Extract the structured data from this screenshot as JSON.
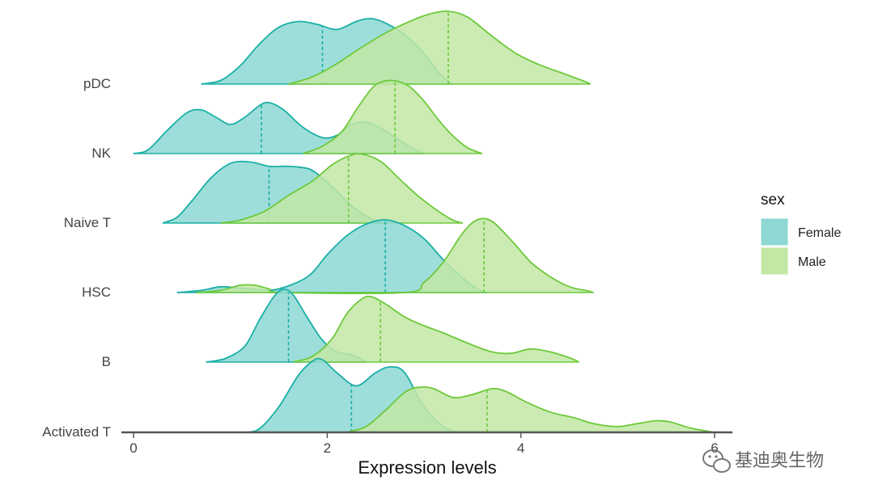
{
  "chart_data": {
    "type": "ridgeline",
    "title": "",
    "xlabel": "Expression levels",
    "ylabel": "",
    "xlim": [
      -0.1,
      6.05
    ],
    "x_ticks": [
      "0",
      "2",
      "4",
      "6"
    ],
    "x_tick_values": [
      0,
      2,
      4,
      6
    ],
    "categories": [
      "Activated T",
      "B",
      "HSC",
      "Naive T",
      "NK",
      "pDC"
    ],
    "legend": {
      "title": "sex",
      "placement": "right",
      "entries": [
        "Female",
        "Male"
      ]
    },
    "series": [
      {
        "name": "Female",
        "color": "#1aafa6",
        "fill": "#8dd8d3",
        "ridges": [
          {
            "category": "Activated T",
            "median": 2.25,
            "points": [
              [
                1.15,
                0
              ],
              [
                1.3,
                0.05
              ],
              [
                1.5,
                0.35
              ],
              [
                1.7,
                0.78
              ],
              [
                1.85,
                0.98
              ],
              [
                1.95,
                1.0
              ],
              [
                2.1,
                0.82
              ],
              [
                2.3,
                0.64
              ],
              [
                2.5,
                0.82
              ],
              [
                2.65,
                0.9
              ],
              [
                2.8,
                0.82
              ],
              [
                3.0,
                0.35
              ],
              [
                3.2,
                0.08
              ],
              [
                3.35,
                0
              ]
            ]
          },
          {
            "category": "B",
            "median": 1.6,
            "points": [
              [
                0.75,
                0
              ],
              [
                0.95,
                0.05
              ],
              [
                1.15,
                0.22
              ],
              [
                1.3,
                0.58
              ],
              [
                1.45,
                0.9
              ],
              [
                1.55,
                1.0
              ],
              [
                1.65,
                0.92
              ],
              [
                1.8,
                0.6
              ],
              [
                1.95,
                0.3
              ],
              [
                2.1,
                0.14
              ],
              [
                2.25,
                0.1
              ],
              [
                2.35,
                0.04
              ],
              [
                2.4,
                0
              ]
            ]
          },
          {
            "category": "HSC",
            "median": 2.6,
            "points": [
              [
                0.45,
                0
              ],
              [
                0.7,
                0.03
              ],
              [
                0.9,
                0.08
              ],
              [
                1.1,
                0.06
              ],
              [
                1.3,
                0.04
              ],
              [
                1.5,
                0.05
              ],
              [
                1.8,
                0.22
              ],
              [
                2.0,
                0.52
              ],
              [
                2.2,
                0.78
              ],
              [
                2.4,
                0.94
              ],
              [
                2.6,
                1.0
              ],
              [
                2.8,
                0.92
              ],
              [
                3.0,
                0.74
              ],
              [
                3.2,
                0.45
              ],
              [
                3.4,
                0.2
              ],
              [
                3.55,
                0.05
              ],
              [
                3.65,
                0
              ]
            ]
          },
          {
            "category": "Naive T",
            "median": 1.4,
            "points": [
              [
                0.3,
                0
              ],
              [
                0.45,
                0.08
              ],
              [
                0.6,
                0.3
              ],
              [
                0.8,
                0.62
              ],
              [
                1.0,
                0.82
              ],
              [
                1.2,
                0.84
              ],
              [
                1.4,
                0.78
              ],
              [
                1.55,
                0.78
              ],
              [
                1.7,
                0.77
              ],
              [
                1.85,
                0.72
              ],
              [
                2.05,
                0.5
              ],
              [
                2.25,
                0.24
              ],
              [
                2.45,
                0.06
              ],
              [
                2.6,
                0
              ]
            ]
          },
          {
            "category": "NK",
            "median": 1.32,
            "points": [
              [
                0.0,
                0
              ],
              [
                0.15,
                0.05
              ],
              [
                0.35,
                0.32
              ],
              [
                0.55,
                0.56
              ],
              [
                0.7,
                0.6
              ],
              [
                0.85,
                0.5
              ],
              [
                1.0,
                0.4
              ],
              [
                1.15,
                0.5
              ],
              [
                1.3,
                0.66
              ],
              [
                1.4,
                0.7
              ],
              [
                1.55,
                0.6
              ],
              [
                1.75,
                0.36
              ],
              [
                1.95,
                0.22
              ],
              [
                2.1,
                0.25
              ],
              [
                2.25,
                0.4
              ],
              [
                2.4,
                0.43
              ],
              [
                2.55,
                0.35
              ],
              [
                2.75,
                0.18
              ],
              [
                2.9,
                0.06
              ],
              [
                3.0,
                0
              ]
            ]
          },
          {
            "category": "pDC",
            "median": 1.95,
            "points": [
              [
                0.7,
                0
              ],
              [
                0.9,
                0.05
              ],
              [
                1.1,
                0.25
              ],
              [
                1.3,
                0.55
              ],
              [
                1.5,
                0.78
              ],
              [
                1.7,
                0.86
              ],
              [
                1.9,
                0.82
              ],
              [
                2.1,
                0.75
              ],
              [
                2.3,
                0.86
              ],
              [
                2.45,
                0.9
              ],
              [
                2.6,
                0.84
              ],
              [
                2.8,
                0.68
              ],
              [
                3.0,
                0.42
              ],
              [
                3.15,
                0.16
              ],
              [
                3.25,
                0.04
              ],
              [
                3.3,
                0
              ]
            ]
          }
        ]
      },
      {
        "name": "Male",
        "color": "#6dc93a",
        "fill": "#c2e8a4",
        "ridges": [
          {
            "category": "Activated T",
            "median": 3.65,
            "points": [
              [
                2.2,
                0
              ],
              [
                2.4,
                0.08
              ],
              [
                2.6,
                0.3
              ],
              [
                2.8,
                0.55
              ],
              [
                2.95,
                0.62
              ],
              [
                3.1,
                0.6
              ],
              [
                3.3,
                0.48
              ],
              [
                3.5,
                0.52
              ],
              [
                3.7,
                0.6
              ],
              [
                3.85,
                0.56
              ],
              [
                4.05,
                0.42
              ],
              [
                4.3,
                0.28
              ],
              [
                4.55,
                0.2
              ],
              [
                4.75,
                0.12
              ],
              [
                5.0,
                0.08
              ],
              [
                5.2,
                0.12
              ],
              [
                5.4,
                0.16
              ],
              [
                5.55,
                0.14
              ],
              [
                5.75,
                0.06
              ],
              [
                6.0,
                0
              ]
            ]
          },
          {
            "category": "B",
            "median": 2.55,
            "points": [
              [
                1.65,
                0
              ],
              [
                1.85,
                0.08
              ],
              [
                2.05,
                0.32
              ],
              [
                2.2,
                0.66
              ],
              [
                2.35,
                0.86
              ],
              [
                2.45,
                0.9
              ],
              [
                2.6,
                0.8
              ],
              [
                2.8,
                0.62
              ],
              [
                3.0,
                0.5
              ],
              [
                3.2,
                0.4
              ],
              [
                3.45,
                0.26
              ],
              [
                3.7,
                0.14
              ],
              [
                3.9,
                0.12
              ],
              [
                4.1,
                0.18
              ],
              [
                4.3,
                0.14
              ],
              [
                4.5,
                0.06
              ],
              [
                4.6,
                0
              ]
            ]
          },
          {
            "category": "HSC",
            "median": 3.62,
            "points": [
              [
                0.65,
                0
              ],
              [
                0.9,
                0.03
              ],
              [
                1.1,
                0.1
              ],
              [
                1.25,
                0.1
              ],
              [
                1.4,
                0.05
              ],
              [
                1.55,
                0
              ],
              [
                2.8,
                0
              ],
              [
                3.0,
                0.14
              ],
              [
                3.2,
                0.42
              ],
              [
                3.4,
                0.82
              ],
              [
                3.55,
                1.0
              ],
              [
                3.7,
                0.98
              ],
              [
                3.9,
                0.72
              ],
              [
                4.1,
                0.42
              ],
              [
                4.3,
                0.22
              ],
              [
                4.5,
                0.08
              ],
              [
                4.7,
                0.02
              ],
              [
                4.75,
                0
              ]
            ]
          },
          {
            "category": "Naive T",
            "median": 2.22,
            "points": [
              [
                0.9,
                0
              ],
              [
                1.1,
                0.04
              ],
              [
                1.35,
                0.16
              ],
              [
                1.6,
                0.38
              ],
              [
                1.85,
                0.58
              ],
              [
                2.05,
                0.8
              ],
              [
                2.22,
                0.92
              ],
              [
                2.35,
                0.95
              ],
              [
                2.55,
                0.85
              ],
              [
                2.75,
                0.6
              ],
              [
                2.95,
                0.36
              ],
              [
                3.15,
                0.16
              ],
              [
                3.3,
                0.04
              ],
              [
                3.4,
                0
              ]
            ]
          },
          {
            "category": "NK",
            "median": 2.7,
            "points": [
              [
                1.75,
                0
              ],
              [
                1.95,
                0.1
              ],
              [
                2.15,
                0.3
              ],
              [
                2.3,
                0.6
              ],
              [
                2.45,
                0.88
              ],
              [
                2.55,
                0.98
              ],
              [
                2.7,
                1.0
              ],
              [
                2.85,
                0.92
              ],
              [
                3.0,
                0.72
              ],
              [
                3.15,
                0.46
              ],
              [
                3.3,
                0.24
              ],
              [
                3.45,
                0.08
              ],
              [
                3.6,
                0
              ]
            ]
          },
          {
            "category": "pDC",
            "median": 3.25,
            "points": [
              [
                1.6,
                0
              ],
              [
                1.85,
                0.1
              ],
              [
                2.1,
                0.28
              ],
              [
                2.35,
                0.5
              ],
              [
                2.6,
                0.7
              ],
              [
                2.85,
                0.86
              ],
              [
                3.05,
                0.96
              ],
              [
                3.25,
                1.0
              ],
              [
                3.45,
                0.92
              ],
              [
                3.7,
                0.66
              ],
              [
                3.95,
                0.42
              ],
              [
                4.2,
                0.26
              ],
              [
                4.45,
                0.14
              ],
              [
                4.65,
                0.04
              ],
              [
                4.72,
                0
              ]
            ]
          }
        ]
      }
    ],
    "grid": false
  },
  "watermark": {
    "text": "基迪奥生物",
    "icon": "wechat-icon"
  }
}
